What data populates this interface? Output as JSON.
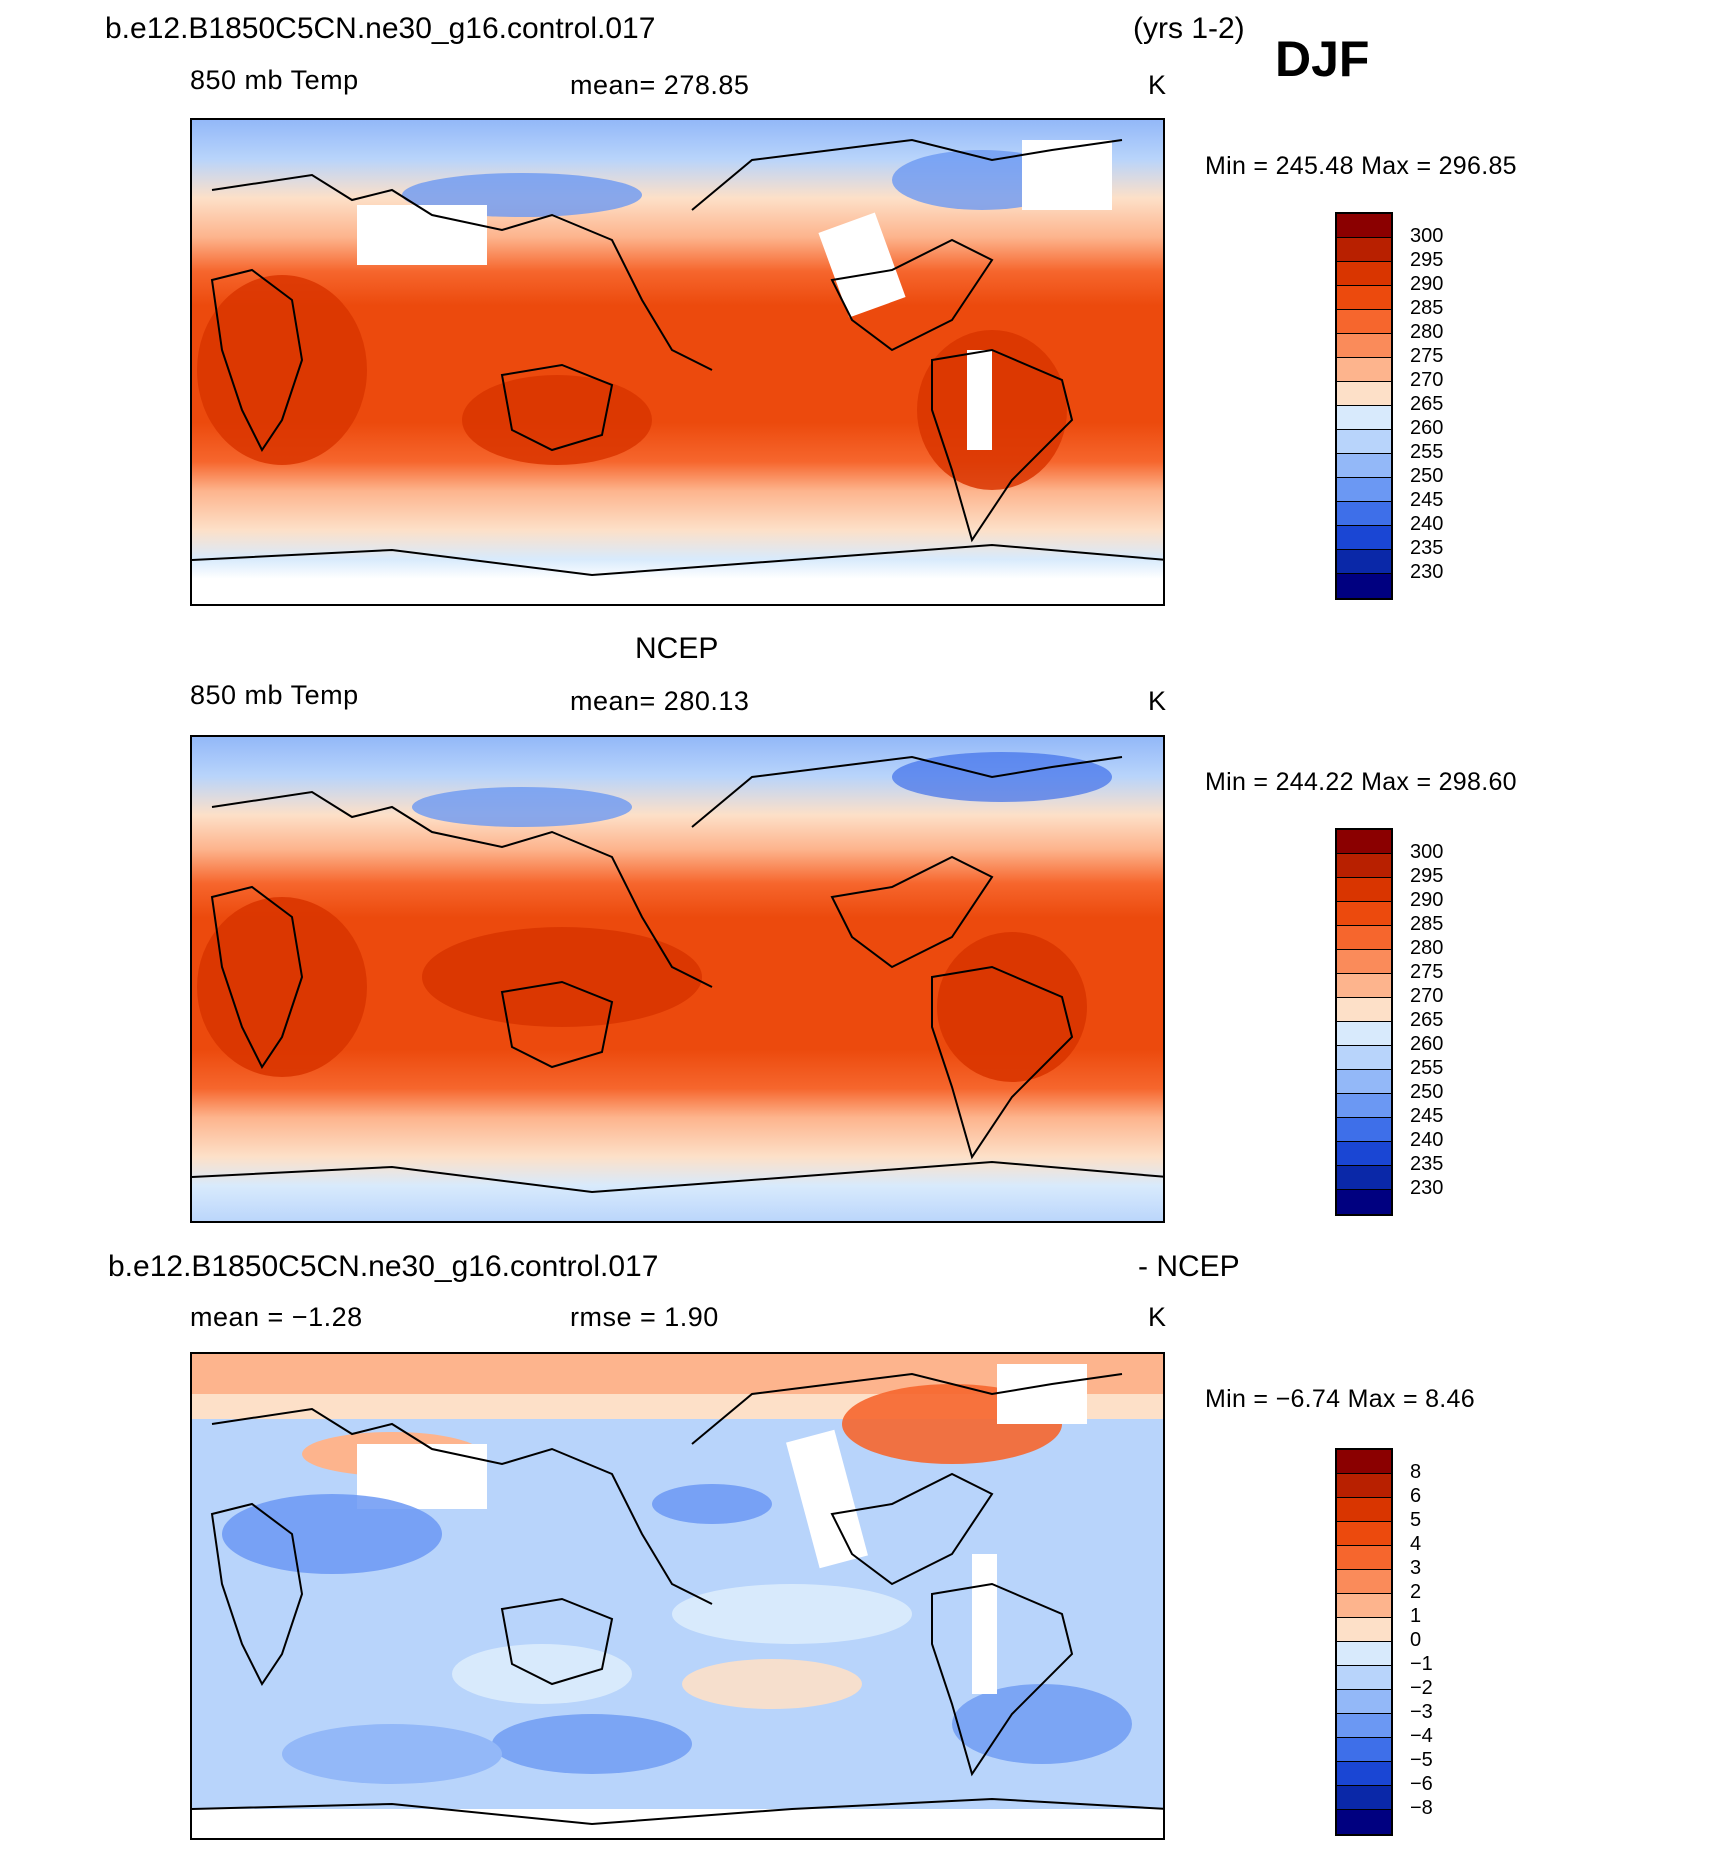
{
  "header": {
    "case_name": "b.e12.B1850C5CN.ne30_g16.control.017",
    "years": "(yrs 1-2)",
    "season": "DJF"
  },
  "panels": [
    {
      "id": "model",
      "title": "",
      "variable": "850 mb Temp",
      "stat": "mean=  278.85",
      "units": "K",
      "minmax": "Min  =  245.48  Max  =  296.85"
    },
    {
      "id": "obs",
      "title": "NCEP",
      "variable": "850 mb Temp",
      "stat": "mean=  280.13",
      "units": "K",
      "minmax": "Min  =  244.22  Max  =  298.60"
    },
    {
      "id": "diff",
      "title_left": "b.e12.B1850C5CN.ne30_g16.control.017",
      "title_right": "- NCEP",
      "mean": "mean =    −1.28",
      "rmse": "rmse =     1.90",
      "units": "K",
      "minmax": "Min  =    −6.74  Max  =     8.46"
    }
  ],
  "colorbars": {
    "temperature": {
      "labels": [
        "300",
        "295",
        "290",
        "285",
        "280",
        "275",
        "270",
        "265",
        "260",
        "255",
        "250",
        "245",
        "240",
        "235",
        "230"
      ],
      "colors": [
        "#8b0000",
        "#b82000",
        "#d93500",
        "#ec4a0d",
        "#f6662d",
        "#fa8b5a",
        "#fdb48d",
        "#fde0c8",
        "#d8eafc",
        "#b8d4fb",
        "#93b8f8",
        "#6b98f3",
        "#3e6fe9",
        "#1a46d4",
        "#0a28a8",
        "#000080"
      ]
    },
    "difference": {
      "labels": [
        "8",
        "6",
        "5",
        "4",
        "3",
        "2",
        "1",
        "0",
        "−1",
        "−2",
        "−3",
        "−4",
        "−5",
        "−6",
        "−8"
      ],
      "colors": [
        "#8b0000",
        "#b82000",
        "#d93500",
        "#ec4a0d",
        "#f6662d",
        "#fa8b5a",
        "#fdb48d",
        "#fde0c8",
        "#d8eafc",
        "#b8d4fb",
        "#93b8f8",
        "#6b98f3",
        "#3e6fe9",
        "#1a46d4",
        "#0a28a8",
        "#000080"
      ]
    }
  }
}
